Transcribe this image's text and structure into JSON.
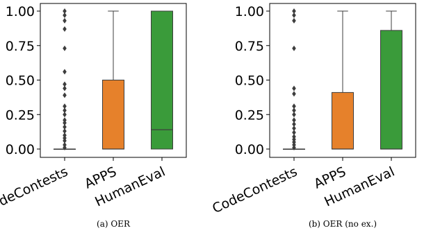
{
  "chart_data": [
    {
      "type": "box",
      "caption": "(a) OER",
      "categories": [
        "CodeContests",
        "APPS",
        "HumanEval"
      ],
      "ylim": [
        0,
        1
      ],
      "yticks": [
        "0.00",
        "0.25",
        "0.50",
        "0.75",
        "1.00"
      ],
      "ytick_values": [
        0,
        0.25,
        0.5,
        0.75,
        1.0
      ],
      "series": [
        {
          "category": "CodeContests",
          "color": "#1f77b4",
          "q1": 0,
          "median": 0,
          "q3": 0,
          "whisker_low": 0,
          "whisker_high": 0,
          "outliers": [
            0.01,
            0.03,
            0.06,
            0.08,
            0.1,
            0.13,
            0.16,
            0.19,
            0.21,
            0.25,
            0.28,
            0.31,
            0.39,
            0.44,
            0.47,
            0.56,
            0.73,
            0.87,
            0.93,
            0.97,
            1.0
          ]
        },
        {
          "category": "APPS",
          "color": "#e6812b",
          "q1": 0,
          "median": 0,
          "q3": 0.5,
          "whisker_low": 0,
          "whisker_high": 1.0,
          "outliers": []
        },
        {
          "category": "HumanEval",
          "color": "#3a9b3a",
          "q1": 0,
          "median": 0.14,
          "q3": 1.0,
          "whisker_low": 0,
          "whisker_high": 1.0,
          "outliers": []
        }
      ]
    },
    {
      "type": "box",
      "caption": "(b) OER (no ex.)",
      "categories": [
        "CodeContests",
        "APPS",
        "HumanEval"
      ],
      "ylim": [
        0,
        1
      ],
      "yticks": [
        "0.00",
        "0.25",
        "0.50",
        "0.75",
        "1.00"
      ],
      "ytick_values": [
        0,
        0.25,
        0.5,
        0.75,
        1.0
      ],
      "series": [
        {
          "category": "CodeContests",
          "color": "#1f77b4",
          "q1": 0,
          "median": 0,
          "q3": 0,
          "whisker_low": 0,
          "whisker_high": 0,
          "outliers": [
            0.01,
            0.03,
            0.05,
            0.07,
            0.09,
            0.12,
            0.15,
            0.18,
            0.21,
            0.25,
            0.28,
            0.31,
            0.4,
            0.44,
            0.73,
            0.93,
            0.97,
            1.0
          ]
        },
        {
          "category": "APPS",
          "color": "#e6812b",
          "q1": 0,
          "median": 0,
          "q3": 0.41,
          "whisker_low": 0,
          "whisker_high": 1.0,
          "outliers": []
        },
        {
          "category": "HumanEval",
          "color": "#3a9b3a",
          "q1": 0,
          "median": 0,
          "q3": 0.86,
          "whisker_low": 0,
          "whisker_high": 1.0,
          "outliers": []
        }
      ]
    }
  ]
}
